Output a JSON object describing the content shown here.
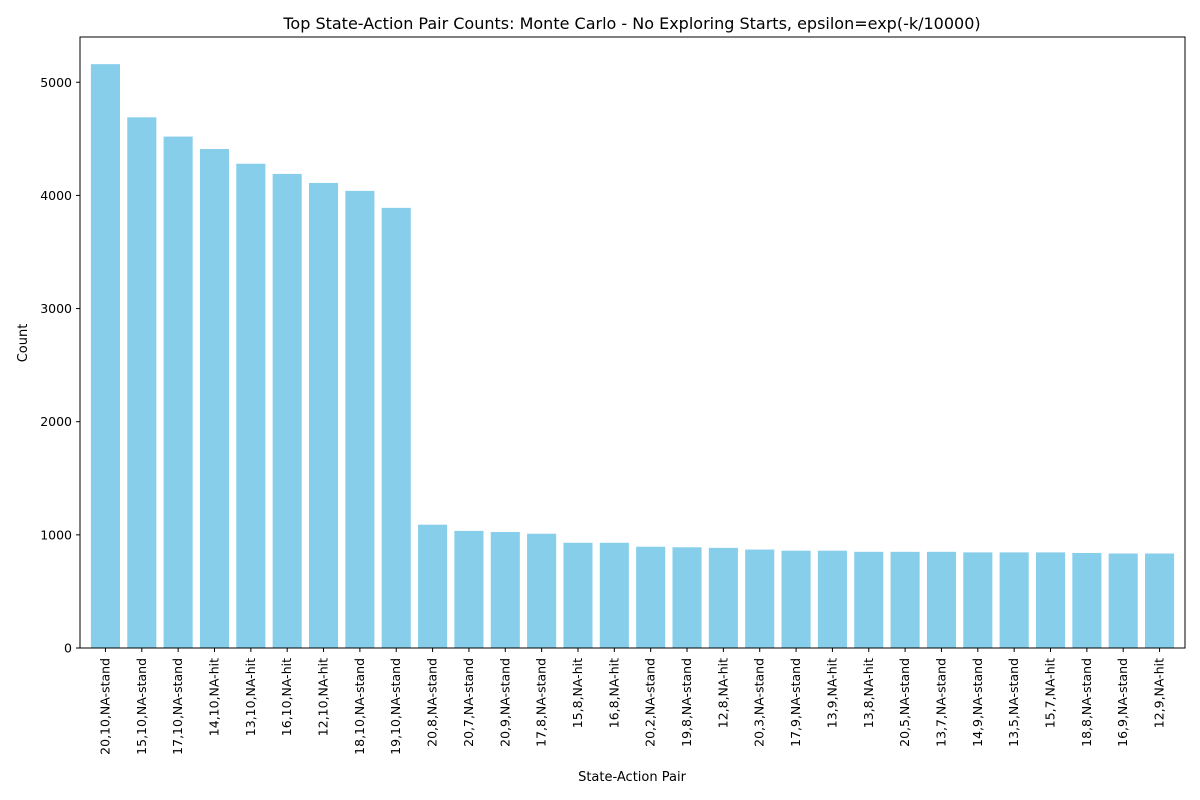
{
  "chart_data": {
    "type": "bar",
    "title": "Top State-Action Pair Counts: Monte Carlo - No Exploring Starts, epsilon=exp(-k/10000)",
    "xlabel": "State-Action Pair",
    "ylabel": "Count",
    "ylim": [
      0,
      5400
    ],
    "yticks": [
      0,
      1000,
      2000,
      3000,
      4000,
      5000
    ],
    "grid": false,
    "legend": "none",
    "bar_color": "#87ceeb",
    "categories": [
      "20,10,NA-stand",
      "15,10,NA-stand",
      "17,10,NA-stand",
      "14,10,NA-hit",
      "13,10,NA-hit",
      "16,10,NA-hit",
      "12,10,NA-hit",
      "18,10,NA-stand",
      "19,10,NA-stand",
      "20,8,NA-stand",
      "20,7,NA-stand",
      "20,9,NA-stand",
      "17,8,NA-stand",
      "15,8,NA-hit",
      "16,8,NA-hit",
      "20,2,NA-stand",
      "19,8,NA-stand",
      "12,8,NA-hit",
      "20,3,NA-stand",
      "17,9,NA-stand",
      "13,9,NA-hit",
      "13,8,NA-hit",
      "20,5,NA-stand",
      "13,7,NA-stand",
      "14,9,NA-stand",
      "13,5,NA-stand",
      "15,7,NA-hit",
      "18,8,NA-stand",
      "16,9,NA-stand",
      "12,9,NA-hit"
    ],
    "values": [
      5160,
      4690,
      4520,
      4410,
      4280,
      4190,
      4110,
      4040,
      3890,
      1090,
      1035,
      1025,
      1010,
      930,
      930,
      895,
      890,
      885,
      870,
      860,
      860,
      850,
      850,
      850,
      845,
      845,
      845,
      840,
      835,
      835
    ]
  }
}
